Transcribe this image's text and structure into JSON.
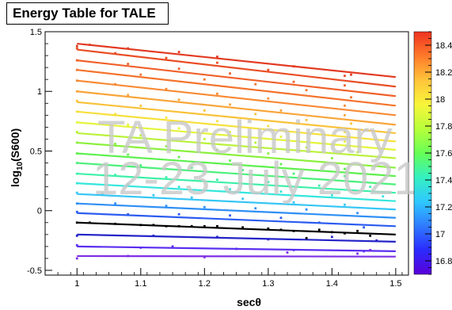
{
  "chart_data": {
    "type": "line",
    "title": "Energy Table for TALE",
    "xlabel_main": "sec",
    "xlabel_symbol": "θ",
    "ylabel_main": "log",
    "ylabel_sub": "10",
    "ylabel_rest": "(S600)",
    "xlim": [
      0.95,
      1.52
    ],
    "ylim": [
      -0.54,
      1.5
    ],
    "x_ticks": [
      1,
      1.1,
      1.2,
      1.3,
      1.4,
      1.5
    ],
    "x_tick_labels": [
      "1",
      "1.1",
      "1.2",
      "1.3",
      "1.4",
      "1.5"
    ],
    "y_ticks": [
      -0.5,
      0,
      0.5,
      1,
      1.5
    ],
    "y_tick_labels": [
      "-0.5",
      "0",
      "0.5",
      "1",
      "1.5"
    ],
    "colorbar": {
      "range": [
        16.7,
        18.5
      ],
      "ticks": [
        16.8,
        17,
        17.2,
        17.4,
        17.6,
        17.8,
        18,
        18.2,
        18.4
      ],
      "tick_labels": [
        "16.8",
        "17",
        "17.2",
        "17.4",
        "17.6",
        "17.8",
        "18",
        "18.2",
        "18.4"
      ],
      "colors": [
        "#5a00d8",
        "#2b2bff",
        "#2f7bff",
        "#2fc8ff",
        "#35f0c0",
        "#66ff55",
        "#b8ff3a",
        "#f8f53a",
        "#ffc43a",
        "#ff7a2a",
        "#ee3322"
      ]
    },
    "series": [
      {
        "energy": 16.8,
        "color": "#7e2fe6",
        "fit": [
          [
            1.0,
            -0.38
          ],
          [
            1.5,
            -0.385
          ]
        ],
        "points": [
          [
            1.0,
            -0.4
          ],
          [
            1.08,
            -0.38
          ],
          [
            1.2,
            -0.39
          ],
          [
            1.33,
            -0.35
          ],
          [
            1.44,
            -0.36
          ],
          [
            1.46,
            -0.33
          ]
        ]
      },
      {
        "energy": 16.9,
        "color": "#5b2ef0",
        "fit": [
          [
            1.0,
            -0.3
          ],
          [
            1.5,
            -0.34
          ]
        ],
        "points": [
          [
            1.0,
            -0.29
          ],
          [
            1.1,
            -0.31
          ],
          [
            1.15,
            -0.3
          ],
          [
            1.25,
            -0.32
          ],
          [
            1.34,
            -0.33
          ],
          [
            1.45,
            -0.34
          ]
        ]
      },
      {
        "energy": 17.0,
        "color": "#2424c8",
        "fit": [
          [
            1.0,
            -0.2
          ],
          [
            1.5,
            -0.26
          ]
        ],
        "points": [
          [
            1.0,
            -0.21
          ],
          [
            1.12,
            -0.21
          ],
          [
            1.22,
            -0.22
          ],
          [
            1.3,
            -0.24
          ],
          [
            1.4,
            -0.22
          ],
          [
            1.47,
            -0.25
          ]
        ]
      },
      {
        "energy": 17.1,
        "color": "#000000",
        "fit": [
          [
            1.0,
            -0.1
          ],
          [
            1.5,
            -0.2
          ]
        ],
        "points": [
          [
            1.0,
            -0.1
          ],
          [
            1.02,
            -0.1
          ],
          [
            1.06,
            -0.11
          ],
          [
            1.1,
            -0.12
          ],
          [
            1.12,
            -0.12
          ],
          [
            1.14,
            -0.13
          ],
          [
            1.16,
            -0.13
          ],
          [
            1.18,
            -0.13
          ],
          [
            1.2,
            -0.13
          ],
          [
            1.22,
            -0.13
          ],
          [
            1.26,
            -0.14
          ],
          [
            1.3,
            -0.15
          ],
          [
            1.32,
            -0.16
          ],
          [
            1.34,
            -0.17
          ],
          [
            1.36,
            -0.23
          ],
          [
            1.38,
            -0.16
          ],
          [
            1.4,
            -0.18
          ],
          [
            1.42,
            -0.19
          ],
          [
            1.44,
            -0.17
          ],
          [
            1.46,
            -0.21
          ]
        ]
      },
      {
        "energy": 17.2,
        "color": "#2c5cf0",
        "fit": [
          [
            1.0,
            -0.02
          ],
          [
            1.5,
            -0.13
          ]
        ],
        "points": [
          [
            1.0,
            -0.01
          ],
          [
            1.08,
            -0.03
          ],
          [
            1.16,
            -0.03
          ],
          [
            1.24,
            -0.04
          ],
          [
            1.32,
            -0.06
          ],
          [
            1.38,
            -0.1
          ],
          [
            1.45,
            -0.14
          ]
        ]
      },
      {
        "energy": 17.3,
        "color": "#2f8ff5",
        "fit": [
          [
            1.0,
            0.06
          ],
          [
            1.5,
            -0.06
          ]
        ],
        "points": [
          [
            1.0,
            0.06
          ],
          [
            1.06,
            0.06
          ],
          [
            1.14,
            0.04
          ],
          [
            1.2,
            0.03
          ],
          [
            1.28,
            0.02
          ],
          [
            1.36,
            0.01
          ],
          [
            1.44,
            -0.02
          ]
        ]
      },
      {
        "energy": 17.4,
        "color": "#36c6f5",
        "fit": [
          [
            1.0,
            0.14
          ],
          [
            1.5,
            0.01
          ]
        ],
        "points": [
          [
            1.0,
            0.15
          ],
          [
            1.04,
            0.14
          ],
          [
            1.12,
            0.13
          ],
          [
            1.18,
            0.11
          ],
          [
            1.26,
            0.1
          ],
          [
            1.34,
            0.07
          ],
          [
            1.42,
            0.05
          ]
        ]
      },
      {
        "energy": 17.5,
        "color": "#34e6dc",
        "fit": [
          [
            1.0,
            0.23
          ],
          [
            1.5,
            0.08
          ]
        ],
        "points": [
          [
            1.0,
            0.23
          ],
          [
            1.08,
            0.22
          ],
          [
            1.16,
            0.2
          ],
          [
            1.24,
            0.18
          ],
          [
            1.32,
            0.16
          ],
          [
            1.4,
            0.13
          ],
          [
            1.48,
            0.12
          ]
        ]
      },
      {
        "energy": 17.6,
        "color": "#3ef0a8",
        "fit": [
          [
            1.0,
            0.31
          ],
          [
            1.5,
            0.15
          ]
        ],
        "points": [
          [
            1.0,
            0.31
          ],
          [
            1.06,
            0.3
          ],
          [
            1.14,
            0.28
          ],
          [
            1.22,
            0.26
          ],
          [
            1.3,
            0.24
          ],
          [
            1.38,
            0.21
          ],
          [
            1.46,
            0.2
          ]
        ]
      },
      {
        "energy": 17.7,
        "color": "#4af07a",
        "fit": [
          [
            1.0,
            0.4
          ],
          [
            1.5,
            0.22
          ]
        ],
        "points": [
          [
            1.0,
            0.4
          ],
          [
            1.1,
            0.38
          ],
          [
            1.18,
            0.36
          ],
          [
            1.26,
            0.34
          ],
          [
            1.34,
            0.31
          ],
          [
            1.42,
            0.29
          ]
        ]
      },
      {
        "energy": 17.8,
        "color": "#5ef04e",
        "fit": [
          [
            1.0,
            0.48
          ],
          [
            1.5,
            0.29
          ]
        ],
        "points": [
          [
            1.0,
            0.48
          ],
          [
            1.08,
            0.47
          ],
          [
            1.16,
            0.45
          ],
          [
            1.24,
            0.42
          ],
          [
            1.32,
            0.39
          ],
          [
            1.42,
            0.35
          ]
        ]
      },
      {
        "energy": 17.9,
        "color": "#8af03c",
        "fit": [
          [
            1.0,
            0.57
          ],
          [
            1.5,
            0.36
          ]
        ],
        "points": [
          [
            1.0,
            0.57
          ],
          [
            1.06,
            0.56
          ],
          [
            1.14,
            0.54
          ],
          [
            1.22,
            0.51
          ],
          [
            1.3,
            0.48
          ],
          [
            1.4,
            0.44
          ]
        ]
      },
      {
        "energy": 18.0,
        "color": "#baf23a",
        "fit": [
          [
            1.0,
            0.65
          ],
          [
            1.5,
            0.44
          ]
        ],
        "points": [
          [
            1.0,
            0.66
          ],
          [
            1.1,
            0.63
          ],
          [
            1.2,
            0.6
          ],
          [
            1.28,
            0.57
          ],
          [
            1.36,
            0.53
          ],
          [
            1.44,
            0.49
          ]
        ]
      },
      {
        "energy": 18.1,
        "color": "#e4f43a",
        "fit": [
          [
            1.0,
            0.74
          ],
          [
            1.5,
            0.51
          ]
        ],
        "points": [
          [
            1.0,
            0.74
          ],
          [
            1.08,
            0.72
          ],
          [
            1.16,
            0.69
          ],
          [
            1.24,
            0.66
          ],
          [
            1.32,
            0.62
          ],
          [
            1.42,
            0.58
          ]
        ]
      },
      {
        "energy": 18.2,
        "color": "#f6e03a",
        "fit": [
          [
            1.0,
            0.83
          ],
          [
            1.5,
            0.58
          ]
        ],
        "points": [
          [
            1.0,
            0.83
          ],
          [
            1.06,
            0.81
          ],
          [
            1.14,
            0.78
          ],
          [
            1.22,
            0.75
          ],
          [
            1.3,
            0.71
          ],
          [
            1.42,
            0.66
          ]
        ]
      },
      {
        "energy": 18.3,
        "color": "#f8c23a",
        "fit": [
          [
            1.0,
            0.91
          ],
          [
            1.5,
            0.65
          ]
        ],
        "points": [
          [
            1.0,
            0.92
          ],
          [
            1.1,
            0.88
          ],
          [
            1.2,
            0.84
          ],
          [
            1.28,
            0.81
          ],
          [
            1.36,
            0.76
          ],
          [
            1.43,
            0.73
          ]
        ]
      },
      {
        "energy": 18.4,
        "color": "#f8a53a",
        "fit": [
          [
            1.0,
            1.0
          ],
          [
            1.5,
            0.72
          ]
        ],
        "points": [
          [
            1.0,
            1.0
          ],
          [
            1.08,
            0.97
          ],
          [
            1.16,
            0.93
          ],
          [
            1.24,
            0.89
          ],
          [
            1.32,
            0.84
          ],
          [
            1.42,
            0.8
          ]
        ]
      },
      {
        "energy": 18.5,
        "color": "#f88a34",
        "fit": [
          [
            1.0,
            1.09
          ],
          [
            1.5,
            0.8
          ]
        ],
        "points": [
          [
            1.0,
            1.09
          ],
          [
            1.06,
            1.06
          ],
          [
            1.14,
            1.02
          ],
          [
            1.22,
            0.98
          ],
          [
            1.3,
            0.94
          ],
          [
            1.42,
            0.88
          ]
        ]
      },
      {
        "energy": 18.6,
        "color": "#f4742e",
        "fit": [
          [
            1.0,
            1.18
          ],
          [
            1.5,
            0.88
          ]
        ],
        "points": [
          [
            1.0,
            1.18
          ],
          [
            1.1,
            1.14
          ],
          [
            1.2,
            1.1
          ],
          [
            1.28,
            1.06
          ],
          [
            1.36,
            1.01
          ],
          [
            1.43,
            0.95
          ]
        ]
      },
      {
        "energy": 18.7,
        "color": "#f0602a",
        "fit": [
          [
            1.0,
            1.26
          ],
          [
            1.5,
            0.96
          ]
        ],
        "points": [
          [
            1.0,
            1.26
          ],
          [
            1.08,
            1.23
          ],
          [
            1.16,
            1.19
          ],
          [
            1.24,
            1.15
          ],
          [
            1.34,
            1.08
          ],
          [
            1.42,
            1.05
          ]
        ]
      },
      {
        "energy": 18.8,
        "color": "#e94e26",
        "fit": [
          [
            1.0,
            1.35
          ],
          [
            1.5,
            1.04
          ]
        ],
        "points": [
          [
            1.0,
            1.36
          ],
          [
            1.06,
            1.32
          ],
          [
            1.14,
            1.28
          ],
          [
            1.22,
            1.24
          ],
          [
            1.3,
            1.18
          ],
          [
            1.42,
            1.13
          ]
        ]
      },
      {
        "energy": 18.9,
        "color": "#e23a22",
        "fit": [
          [
            1.0,
            1.4
          ],
          [
            1.5,
            1.12
          ]
        ],
        "points": [
          [
            1.0,
            1.38
          ],
          [
            1.02,
            1.39
          ],
          [
            1.08,
            1.36
          ],
          [
            1.16,
            1.33
          ],
          [
            1.22,
            1.29
          ],
          [
            1.34,
            1.21
          ],
          [
            1.43,
            1.14
          ]
        ]
      }
    ],
    "annotations": [
      "TA Preliminary",
      "12-23 July 2021"
    ]
  }
}
